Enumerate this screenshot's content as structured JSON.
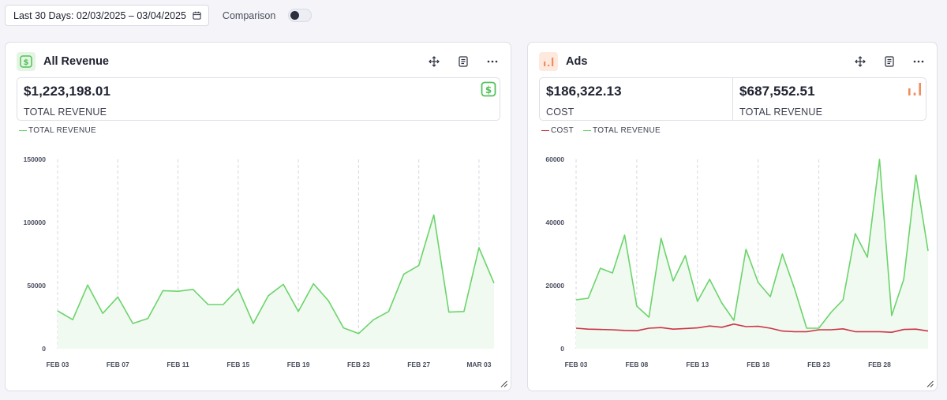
{
  "toolbar": {
    "date_range_label": "Last 30 Days: 02/03/2025 – 03/04/2025",
    "comparison_label": "Comparison",
    "comparison_on": false
  },
  "colors": {
    "revenue": "#6bd46b",
    "revenue_fill": "#f0faf0",
    "cost": "#cc3548",
    "cost_fill": "#f3ece8",
    "revenue_badge": "#52c15a",
    "ads_badge": "#ef8d5c"
  },
  "revenue_card": {
    "title": "All Revenue",
    "icon": "dollar-icon",
    "total_value": "$1,223,198.01",
    "total_label": "TOTAL REVENUE",
    "legend": [
      "TOTAL REVENUE"
    ]
  },
  "ads_card": {
    "title": "Ads",
    "icon": "bar-chart-icon",
    "cost_value": "$186,322.13",
    "cost_label": "COST",
    "revenue_value": "$687,552.51",
    "revenue_label": "TOTAL REVENUE",
    "legend": [
      "COST",
      "TOTAL REVENUE"
    ]
  },
  "chart_data": [
    {
      "type": "area",
      "x_ticks": [
        "FEB 03",
        "FEB 07",
        "FEB 11",
        "FEB 15",
        "FEB 19",
        "FEB 23",
        "FEB 27",
        "MAR 03"
      ],
      "y_ticks": [
        "0",
        "50000",
        "100000",
        "150000"
      ],
      "ylim": [
        0,
        150000
      ],
      "grid": "vertical dashed",
      "legend_position": "top-left",
      "series": [
        {
          "name": "TOTAL REVENUE",
          "values": [
            30000,
            23000,
            50500,
            28000,
            41000,
            20000,
            24000,
            46000,
            45500,
            47000,
            35000,
            35000,
            47500,
            20000,
            42000,
            51000,
            29500,
            51500,
            38000,
            16500,
            12000,
            23000,
            29500,
            59000,
            66000,
            106000,
            29000,
            29500,
            80000,
            52000
          ]
        }
      ]
    },
    {
      "type": "area",
      "x_ticks": [
        "FEB 03",
        "FEB 08",
        "FEB 13",
        "FEB 18",
        "FEB 23",
        "FEB 28"
      ],
      "y_ticks": [
        "0",
        "20000",
        "40000",
        "60000"
      ],
      "ylim": [
        0,
        60000
      ],
      "grid": "vertical dashed",
      "legend_position": "top-left",
      "series": [
        {
          "name": "COST",
          "values": [
            6500,
            6200,
            6100,
            6000,
            5800,
            5700,
            6500,
            6700,
            6200,
            6400,
            6600,
            7200,
            6800,
            7800,
            7000,
            7100,
            6500,
            5600,
            5400,
            5400,
            6000,
            6000,
            6300,
            5400,
            5400,
            5400,
            5200,
            6100,
            6200,
            5600
          ]
        },
        {
          "name": "TOTAL REVENUE",
          "values": [
            15500,
            16000,
            25500,
            24000,
            36000,
            13500,
            10000,
            35000,
            21500,
            29500,
            15000,
            22000,
            14500,
            9000,
            31500,
            21000,
            16500,
            30000,
            19000,
            6500,
            6500,
            11500,
            15500,
            36500,
            29000,
            60000,
            10500,
            22000,
            55000,
            31000
          ]
        }
      ]
    }
  ]
}
